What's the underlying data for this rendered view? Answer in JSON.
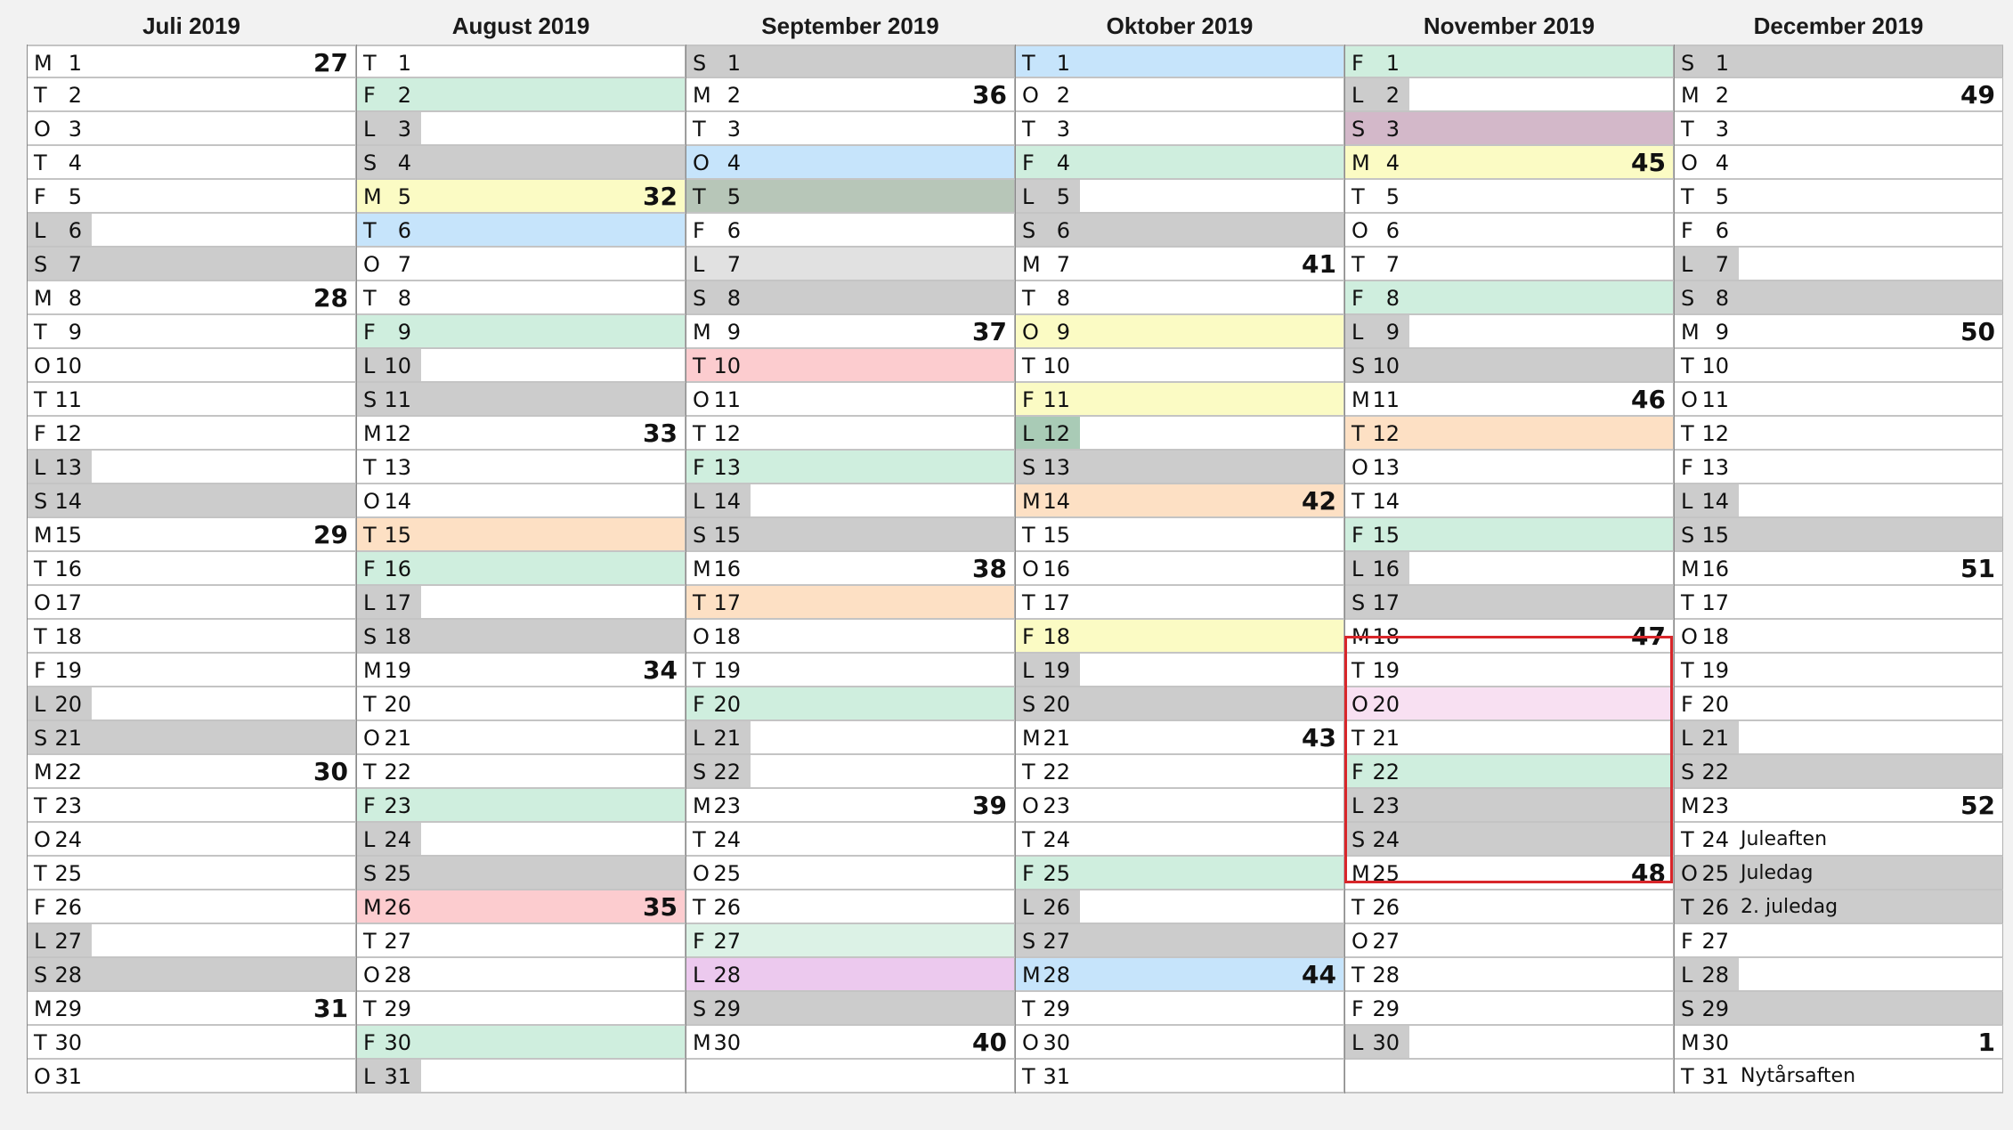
{
  "calendar": {
    "months": [
      {
        "title": "Juli 2019",
        "days": [
          {
            "wd": "M",
            "d": "1",
            "wk": "27"
          },
          {
            "wd": "T",
            "d": "2"
          },
          {
            "wd": "O",
            "d": "3"
          },
          {
            "wd": "T",
            "d": "4"
          },
          {
            "wd": "F",
            "d": "5"
          },
          {
            "wd": "L",
            "d": "6",
            "bg": "weekend",
            "span": "short"
          },
          {
            "wd": "S",
            "d": "7",
            "bg": "weekend",
            "span": "full"
          },
          {
            "wd": "M",
            "d": "8",
            "wk": "28"
          },
          {
            "wd": "T",
            "d": "9"
          },
          {
            "wd": "O",
            "d": "10"
          },
          {
            "wd": "T",
            "d": "11"
          },
          {
            "wd": "F",
            "d": "12"
          },
          {
            "wd": "L",
            "d": "13",
            "bg": "weekend",
            "span": "short"
          },
          {
            "wd": "S",
            "d": "14",
            "bg": "weekend",
            "span": "full"
          },
          {
            "wd": "M",
            "d": "15",
            "wk": "29"
          },
          {
            "wd": "T",
            "d": "16"
          },
          {
            "wd": "O",
            "d": "17"
          },
          {
            "wd": "T",
            "d": "18"
          },
          {
            "wd": "F",
            "d": "19"
          },
          {
            "wd": "L",
            "d": "20",
            "bg": "weekend",
            "span": "short"
          },
          {
            "wd": "S",
            "d": "21",
            "bg": "weekend",
            "span": "full"
          },
          {
            "wd": "M",
            "d": "22",
            "wk": "30"
          },
          {
            "wd": "T",
            "d": "23"
          },
          {
            "wd": "O",
            "d": "24"
          },
          {
            "wd": "T",
            "d": "25"
          },
          {
            "wd": "F",
            "d": "26"
          },
          {
            "wd": "L",
            "d": "27",
            "bg": "weekend",
            "span": "short"
          },
          {
            "wd": "S",
            "d": "28",
            "bg": "weekend",
            "span": "full"
          },
          {
            "wd": "M",
            "d": "29",
            "wk": "31"
          },
          {
            "wd": "T",
            "d": "30"
          },
          {
            "wd": "O",
            "d": "31"
          }
        ]
      },
      {
        "title": "August 2019",
        "days": [
          {
            "wd": "T",
            "d": "1"
          },
          {
            "wd": "F",
            "d": "2",
            "bg": "green",
            "span": "full"
          },
          {
            "wd": "L",
            "d": "3",
            "bg": "weekend",
            "span": "short"
          },
          {
            "wd": "S",
            "d": "4",
            "bg": "weekend",
            "span": "full"
          },
          {
            "wd": "M",
            "d": "5",
            "wk": "32",
            "bg": "yellow",
            "span": "full"
          },
          {
            "wd": "T",
            "d": "6",
            "bg": "blue",
            "span": "full"
          },
          {
            "wd": "O",
            "d": "7"
          },
          {
            "wd": "T",
            "d": "8"
          },
          {
            "wd": "F",
            "d": "9",
            "bg": "green",
            "span": "full"
          },
          {
            "wd": "L",
            "d": "10",
            "bg": "weekend",
            "span": "short"
          },
          {
            "wd": "S",
            "d": "11",
            "bg": "weekend",
            "span": "full"
          },
          {
            "wd": "M",
            "d": "12",
            "wk": "33"
          },
          {
            "wd": "T",
            "d": "13"
          },
          {
            "wd": "O",
            "d": "14"
          },
          {
            "wd": "T",
            "d": "15",
            "bg": "orange",
            "span": "full"
          },
          {
            "wd": "F",
            "d": "16",
            "bg": "green",
            "span": "full"
          },
          {
            "wd": "L",
            "d": "17",
            "bg": "weekend",
            "span": "short"
          },
          {
            "wd": "S",
            "d": "18",
            "bg": "weekend",
            "span": "full"
          },
          {
            "wd": "M",
            "d": "19",
            "wk": "34"
          },
          {
            "wd": "T",
            "d": "20"
          },
          {
            "wd": "O",
            "d": "21"
          },
          {
            "wd": "T",
            "d": "22"
          },
          {
            "wd": "F",
            "d": "23",
            "bg": "green",
            "span": "full"
          },
          {
            "wd": "L",
            "d": "24",
            "bg": "weekend",
            "span": "short"
          },
          {
            "wd": "S",
            "d": "25",
            "bg": "weekend",
            "span": "full"
          },
          {
            "wd": "M",
            "d": "26",
            "wk": "35",
            "bg": "pink",
            "span": "full"
          },
          {
            "wd": "T",
            "d": "27"
          },
          {
            "wd": "O",
            "d": "28"
          },
          {
            "wd": "T",
            "d": "29"
          },
          {
            "wd": "F",
            "d": "30",
            "bg": "green",
            "span": "full"
          },
          {
            "wd": "L",
            "d": "31",
            "bg": "weekend",
            "span": "short"
          }
        ]
      },
      {
        "title": "September 2019",
        "days": [
          {
            "wd": "S",
            "d": "1",
            "bg": "weekend",
            "span": "full"
          },
          {
            "wd": "M",
            "d": "2",
            "wk": "36"
          },
          {
            "wd": "T",
            "d": "3"
          },
          {
            "wd": "O",
            "d": "4",
            "bg": "blue",
            "span": "full"
          },
          {
            "wd": "T",
            "d": "5",
            "bg": "greygreen",
            "span": "full"
          },
          {
            "wd": "F",
            "d": "6"
          },
          {
            "wd": "L",
            "d": "7",
            "bg": "lightgrey",
            "span": "full"
          },
          {
            "wd": "S",
            "d": "8",
            "bg": "weekend",
            "span": "full"
          },
          {
            "wd": "M",
            "d": "9",
            "wk": "37"
          },
          {
            "wd": "T",
            "d": "10",
            "bg": "pink",
            "span": "full"
          },
          {
            "wd": "O",
            "d": "11"
          },
          {
            "wd": "T",
            "d": "12"
          },
          {
            "wd": "F",
            "d": "13",
            "bg": "green",
            "span": "full"
          },
          {
            "wd": "L",
            "d": "14",
            "bg": "weekend",
            "span": "short"
          },
          {
            "wd": "S",
            "d": "15",
            "bg": "weekend",
            "span": "full"
          },
          {
            "wd": "M",
            "d": "16",
            "wk": "38"
          },
          {
            "wd": "T",
            "d": "17",
            "bg": "orange",
            "span": "full"
          },
          {
            "wd": "O",
            "d": "18"
          },
          {
            "wd": "T",
            "d": "19"
          },
          {
            "wd": "F",
            "d": "20",
            "bg": "green",
            "span": "full"
          },
          {
            "wd": "L",
            "d": "21",
            "bg": "weekend",
            "span": "short"
          },
          {
            "wd": "S",
            "d": "22",
            "bg": "weekend",
            "span": "short"
          },
          {
            "wd": "M",
            "d": "23",
            "wk": "39"
          },
          {
            "wd": "T",
            "d": "24"
          },
          {
            "wd": "O",
            "d": "25"
          },
          {
            "wd": "T",
            "d": "26"
          },
          {
            "wd": "F",
            "d": "27",
            "bg": "mint",
            "span": "full"
          },
          {
            "wd": "L",
            "d": "28",
            "bg": "purple",
            "span": "full"
          },
          {
            "wd": "S",
            "d": "29",
            "bg": "weekend",
            "span": "full"
          },
          {
            "wd": "M",
            "d": "30",
            "wk": "40"
          }
        ]
      },
      {
        "title": "Oktober 2019",
        "days": [
          {
            "wd": "T",
            "d": "1",
            "bg": "blue",
            "span": "full"
          },
          {
            "wd": "O",
            "d": "2"
          },
          {
            "wd": "T",
            "d": "3"
          },
          {
            "wd": "F",
            "d": "4",
            "bg": "green",
            "span": "full"
          },
          {
            "wd": "L",
            "d": "5",
            "bg": "weekend",
            "span": "short"
          },
          {
            "wd": "S",
            "d": "6",
            "bg": "weekend",
            "span": "full"
          },
          {
            "wd": "M",
            "d": "7",
            "wk": "41"
          },
          {
            "wd": "T",
            "d": "8"
          },
          {
            "wd": "O",
            "d": "9",
            "bg": "yellow",
            "span": "full"
          },
          {
            "wd": "T",
            "d": "10"
          },
          {
            "wd": "F",
            "d": "11",
            "bg": "yellow",
            "span": "full"
          },
          {
            "wd": "L",
            "d": "12",
            "bg": "darkgreen",
            "span": "short"
          },
          {
            "wd": "S",
            "d": "13",
            "bg": "weekend",
            "span": "full"
          },
          {
            "wd": "M",
            "d": "14",
            "wk": "42",
            "bg": "orange",
            "span": "full"
          },
          {
            "wd": "T",
            "d": "15"
          },
          {
            "wd": "O",
            "d": "16"
          },
          {
            "wd": "T",
            "d": "17"
          },
          {
            "wd": "F",
            "d": "18",
            "bg": "yellow",
            "span": "full"
          },
          {
            "wd": "L",
            "d": "19",
            "bg": "weekend",
            "span": "short"
          },
          {
            "wd": "S",
            "d": "20",
            "bg": "weekend",
            "span": "full"
          },
          {
            "wd": "M",
            "d": "21",
            "wk": "43"
          },
          {
            "wd": "T",
            "d": "22"
          },
          {
            "wd": "O",
            "d": "23"
          },
          {
            "wd": "T",
            "d": "24"
          },
          {
            "wd": "F",
            "d": "25",
            "bg": "green",
            "span": "full"
          },
          {
            "wd": "L",
            "d": "26",
            "bg": "weekend",
            "span": "short"
          },
          {
            "wd": "S",
            "d": "27",
            "bg": "weekend",
            "span": "full"
          },
          {
            "wd": "M",
            "d": "28",
            "wk": "44",
            "bg": "blue",
            "span": "full"
          },
          {
            "wd": "T",
            "d": "29"
          },
          {
            "wd": "O",
            "d": "30"
          },
          {
            "wd": "T",
            "d": "31"
          }
        ]
      },
      {
        "title": "November 2019",
        "days": [
          {
            "wd": "F",
            "d": "1",
            "bg": "green",
            "span": "full"
          },
          {
            "wd": "L",
            "d": "2",
            "bg": "weekend",
            "span": "short"
          },
          {
            "wd": "S",
            "d": "3",
            "bg": "mauve",
            "span": "full"
          },
          {
            "wd": "M",
            "d": "4",
            "wk": "45",
            "bg": "yellow",
            "span": "full"
          },
          {
            "wd": "T",
            "d": "5"
          },
          {
            "wd": "O",
            "d": "6"
          },
          {
            "wd": "T",
            "d": "7"
          },
          {
            "wd": "F",
            "d": "8",
            "bg": "green",
            "span": "full"
          },
          {
            "wd": "L",
            "d": "9",
            "bg": "weekend",
            "span": "short"
          },
          {
            "wd": "S",
            "d": "10",
            "bg": "weekend",
            "span": "full"
          },
          {
            "wd": "M",
            "d": "11",
            "wk": "46"
          },
          {
            "wd": "T",
            "d": "12",
            "bg": "orange",
            "span": "full"
          },
          {
            "wd": "O",
            "d": "13"
          },
          {
            "wd": "T",
            "d": "14"
          },
          {
            "wd": "F",
            "d": "15",
            "bg": "green",
            "span": "full"
          },
          {
            "wd": "L",
            "d": "16",
            "bg": "weekend",
            "span": "short"
          },
          {
            "wd": "S",
            "d": "17",
            "bg": "weekend",
            "span": "full"
          },
          {
            "wd": "M",
            "d": "18",
            "wk": "47"
          },
          {
            "wd": "T",
            "d": "19"
          },
          {
            "wd": "O",
            "d": "20",
            "bg": "lightpink",
            "span": "full"
          },
          {
            "wd": "T",
            "d": "21"
          },
          {
            "wd": "F",
            "d": "22",
            "bg": "green",
            "span": "full"
          },
          {
            "wd": "L",
            "d": "23",
            "bg": "weekend",
            "span": "full"
          },
          {
            "wd": "S",
            "d": "24",
            "bg": "weekend",
            "span": "full"
          },
          {
            "wd": "M",
            "d": "25",
            "wk": "48"
          },
          {
            "wd": "T",
            "d": "26"
          },
          {
            "wd": "O",
            "d": "27"
          },
          {
            "wd": "T",
            "d": "28"
          },
          {
            "wd": "F",
            "d": "29"
          },
          {
            "wd": "L",
            "d": "30",
            "bg": "weekend",
            "span": "short"
          }
        ]
      },
      {
        "title": "December 2019",
        "days": [
          {
            "wd": "S",
            "d": "1",
            "bg": "weekend",
            "span": "full"
          },
          {
            "wd": "M",
            "d": "2",
            "wk": "49"
          },
          {
            "wd": "T",
            "d": "3"
          },
          {
            "wd": "O",
            "d": "4"
          },
          {
            "wd": "T",
            "d": "5"
          },
          {
            "wd": "F",
            "d": "6"
          },
          {
            "wd": "L",
            "d": "7",
            "bg": "weekend",
            "span": "short"
          },
          {
            "wd": "S",
            "d": "8",
            "bg": "weekend",
            "span": "full"
          },
          {
            "wd": "M",
            "d": "9",
            "wk": "50"
          },
          {
            "wd": "T",
            "d": "10"
          },
          {
            "wd": "O",
            "d": "11"
          },
          {
            "wd": "T",
            "d": "12"
          },
          {
            "wd": "F",
            "d": "13"
          },
          {
            "wd": "L",
            "d": "14",
            "bg": "weekend",
            "span": "short"
          },
          {
            "wd": "S",
            "d": "15",
            "bg": "weekend",
            "span": "full"
          },
          {
            "wd": "M",
            "d": "16",
            "wk": "51"
          },
          {
            "wd": "T",
            "d": "17"
          },
          {
            "wd": "O",
            "d": "18"
          },
          {
            "wd": "T",
            "d": "19"
          },
          {
            "wd": "F",
            "d": "20"
          },
          {
            "wd": "L",
            "d": "21",
            "bg": "weekend",
            "span": "short"
          },
          {
            "wd": "S",
            "d": "22",
            "bg": "weekend",
            "span": "full"
          },
          {
            "wd": "M",
            "d": "23",
            "wk": "52"
          },
          {
            "wd": "T",
            "d": "24",
            "hol": "Juleaften"
          },
          {
            "wd": "O",
            "d": "25",
            "hol": "Juledag",
            "bg": "weekend",
            "span": "full"
          },
          {
            "wd": "T",
            "d": "26",
            "hol": "2. juledag",
            "bg": "weekend",
            "span": "full"
          },
          {
            "wd": "F",
            "d": "27"
          },
          {
            "wd": "L",
            "d": "28",
            "bg": "weekend",
            "span": "short"
          },
          {
            "wd": "S",
            "d": "29",
            "bg": "weekend",
            "span": "full"
          },
          {
            "wd": "M",
            "d": "30",
            "wk": "1"
          },
          {
            "wd": "T",
            "d": "31",
            "hol": "Nytårsaften"
          }
        ]
      }
    ],
    "colors": {
      "weekend": "#cccccc",
      "highlight_border": "#d8262a"
    }
  }
}
